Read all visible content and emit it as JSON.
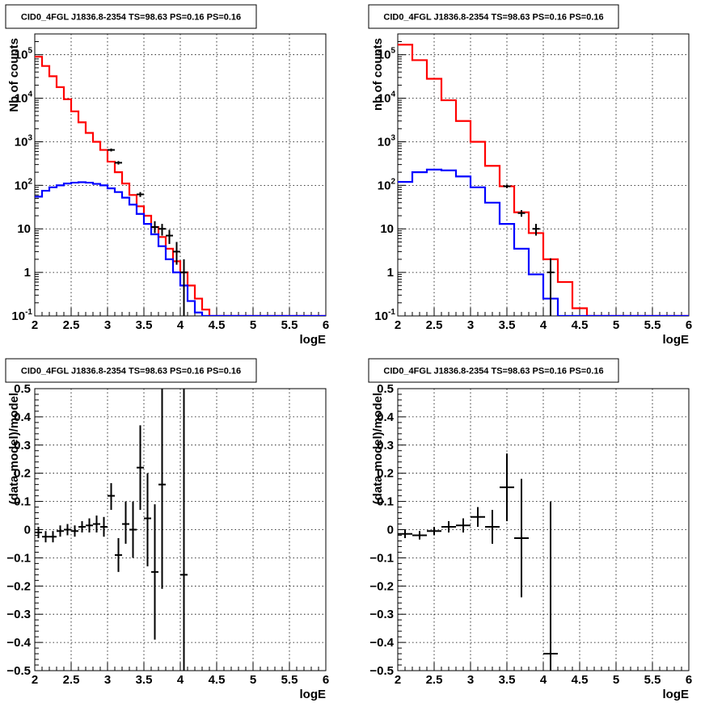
{
  "colors": {
    "total_model": "#ff0000",
    "source_model": "#0000ff",
    "data": "#000000"
  },
  "chart_data": [
    {
      "type": "line",
      "title": "CID0_4FGL J1836.8-2354 TS=98.63 PS=0.16 PS=0.16",
      "xlabel": "logE",
      "ylabel": "Nb of counts",
      "xlim": [
        2,
        6
      ],
      "ylim": [
        0.1,
        300000
      ],
      "yscale": "log",
      "grid": true,
      "xticks": [
        "2",
        "2.5",
        "3",
        "3.5",
        "4",
        "4.5",
        "5",
        "5.5",
        "6"
      ],
      "yticks": [
        {
          "value": 0.1,
          "label": "10",
          "exp": "-1"
        },
        {
          "value": 1,
          "label": "1",
          "exp": ""
        },
        {
          "value": 10,
          "label": "10",
          "exp": ""
        },
        {
          "value": 100,
          "label": "10",
          "exp": "2"
        },
        {
          "value": 1000,
          "label": "10",
          "exp": "3"
        },
        {
          "value": 10000,
          "label": "10",
          "exp": "4"
        },
        {
          "value": 100000,
          "label": "10",
          "exp": "5"
        }
      ],
      "bin_edges": [
        2.0,
        2.1,
        2.2,
        2.3,
        2.4,
        2.5,
        2.6,
        2.7,
        2.8,
        2.9,
        3.0,
        3.1,
        3.2,
        3.3,
        3.4,
        3.5,
        3.6,
        3.7,
        3.8,
        3.9,
        4.0,
        4.1,
        4.2,
        4.3,
        4.4,
        4.5,
        4.6,
        4.7,
        4.8,
        4.9,
        5.0,
        5.1,
        5.2,
        5.3,
        5.4,
        5.5,
        5.6,
        5.7,
        5.8,
        5.9,
        6.0
      ],
      "series": [
        {
          "style": "hist",
          "color": "#ff0000",
          "values": [
            90000,
            55000,
            32000,
            18000,
            9500,
            5000,
            2800,
            1600,
            1000,
            650,
            350,
            200,
            110,
            60,
            33,
            20,
            11,
            6.5,
            3.5,
            1.8,
            1.0,
            0.5,
            0.25,
            0.14,
            0.1,
            0.1,
            0.1,
            0.1,
            0.1,
            0.1,
            0.1,
            0.1,
            0.1,
            0.1,
            0.1,
            0.1,
            0.1,
            0.1,
            0.1,
            0.1
          ]
        },
        {
          "style": "hist",
          "color": "#0000ff",
          "values": [
            55,
            75,
            90,
            100,
            110,
            115,
            118,
            115,
            108,
            100,
            85,
            70,
            52,
            36,
            22,
            13,
            7.5,
            4.0,
            2.0,
            1.0,
            0.5,
            0.22,
            0.12,
            0.1,
            0.1,
            0.1,
            0.1,
            0.1,
            0.1,
            0.1,
            0.1,
            0.1,
            0.1,
            0.1,
            0.1,
            0.1,
            0.1,
            0.1,
            0.1,
            0.1
          ]
        },
        {
          "style": "points",
          "color": "#000000",
          "points": [
            {
              "x": 3.05,
              "y": 650,
              "lo": 600,
              "hi": 700
            },
            {
              "x": 3.15,
              "y": 330,
              "lo": 300,
              "hi": 360
            },
            {
              "x": 3.45,
              "y": 62,
              "lo": 54,
              "hi": 70
            },
            {
              "x": 3.65,
              "y": 11,
              "lo": 8,
              "hi": 15
            },
            {
              "x": 3.75,
              "y": 10,
              "lo": 7,
              "hi": 13
            },
            {
              "x": 3.85,
              "y": 7,
              "lo": 4.5,
              "hi": 9.5
            },
            {
              "x": 3.95,
              "y": 3.0,
              "lo": 1.5,
              "hi": 5.0
            },
            {
              "x": 4.05,
              "y": 1.0,
              "lo": 0.1,
              "hi": 2.0
            }
          ]
        }
      ]
    },
    {
      "type": "line",
      "title": "CID0_4FGL J1836.8-2354 TS=98.63 PS=0.16 PS=0.16",
      "xlabel": "logE",
      "ylabel": "nb of counts",
      "xlim": [
        2,
        6
      ],
      "ylim": [
        0.1,
        300000
      ],
      "yscale": "log",
      "grid": true,
      "xticks": [
        "2",
        "2.5",
        "3",
        "3.5",
        "4",
        "4.5",
        "5",
        "5.5",
        "6"
      ],
      "yticks": [
        {
          "value": 0.1,
          "label": "10",
          "exp": "-1"
        },
        {
          "value": 1,
          "label": "1",
          "exp": ""
        },
        {
          "value": 10,
          "label": "10",
          "exp": ""
        },
        {
          "value": 100,
          "label": "10",
          "exp": "2"
        },
        {
          "value": 1000,
          "label": "10",
          "exp": "3"
        },
        {
          "value": 10000,
          "label": "10",
          "exp": "4"
        },
        {
          "value": 100000,
          "label": "10",
          "exp": "5"
        }
      ],
      "bin_edges": [
        2.0,
        2.2,
        2.4,
        2.6,
        2.8,
        3.0,
        3.2,
        3.4,
        3.6,
        3.8,
        4.0,
        4.2,
        4.4,
        4.6,
        4.8,
        5.0,
        5.2,
        5.4,
        5.6,
        5.8,
        6.0
      ],
      "series": [
        {
          "style": "hist",
          "color": "#ff0000",
          "values": [
            170000,
            75000,
            28000,
            9000,
            3000,
            1000,
            280,
            95,
            24,
            8,
            2,
            0.6,
            0.15,
            0.1,
            0.1,
            0.1,
            0.1,
            0.1,
            0.1,
            0.1
          ]
        },
        {
          "style": "hist",
          "color": "#0000ff",
          "values": [
            120,
            200,
            230,
            220,
            160,
            90,
            40,
            13,
            3.5,
            0.9,
            0.25,
            0.1,
            0.1,
            0.1,
            0.1,
            0.1,
            0.1,
            0.1,
            0.1,
            0.1
          ]
        },
        {
          "style": "points",
          "color": "#000000",
          "points": [
            {
              "x": 3.5,
              "y": 95,
              "lo": 86,
              "hi": 104
            },
            {
              "x": 3.7,
              "y": 23,
              "lo": 19,
              "hi": 27
            },
            {
              "x": 3.9,
              "y": 10,
              "lo": 7,
              "hi": 13
            },
            {
              "x": 4.1,
              "y": 1.0,
              "lo": 0.1,
              "hi": 2.1
            }
          ]
        }
      ]
    },
    {
      "type": "scatter",
      "title": "CID0_4FGL J1836.8-2354 TS=98.63 PS=0.16 PS=0.16",
      "xlabel": "logE",
      "ylabel": "(data-model)/model",
      "xlim": [
        2,
        6
      ],
      "ylim": [
        -0.5,
        0.5
      ],
      "yscale": "linear",
      "grid": true,
      "xticks": [
        "2",
        "2.5",
        "3",
        "3.5",
        "4",
        "4.5",
        "5",
        "5.5",
        "6"
      ],
      "yticks": [
        {
          "value": -0.5,
          "label": "−0.5",
          "exp": ""
        },
        {
          "value": -0.4,
          "label": "−0.4",
          "exp": ""
        },
        {
          "value": -0.3,
          "label": "−0.3",
          "exp": ""
        },
        {
          "value": -0.2,
          "label": "−0.2",
          "exp": ""
        },
        {
          "value": -0.1,
          "label": "−0.1",
          "exp": ""
        },
        {
          "value": 0,
          "label": "0",
          "exp": ""
        },
        {
          "value": 0.1,
          "label": "0.1",
          "exp": ""
        },
        {
          "value": 0.2,
          "label": "0.2",
          "exp": ""
        },
        {
          "value": 0.3,
          "label": "0.3",
          "exp": ""
        },
        {
          "value": 0.4,
          "label": "0.4",
          "exp": ""
        },
        {
          "value": 0.5,
          "label": "0.5",
          "exp": ""
        }
      ],
      "series": [
        {
          "style": "points",
          "color": "#000000",
          "xerr": 0.05,
          "points": [
            {
              "x": 2.05,
              "y": -0.01,
              "lo": -0.03,
              "hi": 0.01
            },
            {
              "x": 2.15,
              "y": -0.025,
              "lo": -0.045,
              "hi": -0.005
            },
            {
              "x": 2.25,
              "y": -0.025,
              "lo": -0.045,
              "hi": -0.005
            },
            {
              "x": 2.35,
              "y": -0.005,
              "lo": -0.025,
              "hi": 0.015
            },
            {
              "x": 2.45,
              "y": 0.0,
              "lo": -0.02,
              "hi": 0.02
            },
            {
              "x": 2.55,
              "y": -0.005,
              "lo": -0.025,
              "hi": 0.015
            },
            {
              "x": 2.65,
              "y": 0.01,
              "lo": -0.01,
              "hi": 0.03
            },
            {
              "x": 2.75,
              "y": 0.015,
              "lo": -0.01,
              "hi": 0.04
            },
            {
              "x": 2.85,
              "y": 0.02,
              "lo": -0.01,
              "hi": 0.05
            },
            {
              "x": 2.95,
              "y": 0.01,
              "lo": -0.025,
              "hi": 0.045
            },
            {
              "x": 3.05,
              "y": 0.12,
              "lo": 0.07,
              "hi": 0.165
            },
            {
              "x": 3.15,
              "y": -0.09,
              "lo": -0.15,
              "hi": -0.03
            },
            {
              "x": 3.25,
              "y": 0.02,
              "lo": -0.05,
              "hi": 0.1
            },
            {
              "x": 3.35,
              "y": 0.0,
              "lo": -0.1,
              "hi": 0.1
            },
            {
              "x": 3.45,
              "y": 0.22,
              "lo": 0.07,
              "hi": 0.37
            },
            {
              "x": 3.55,
              "y": 0.04,
              "lo": -0.13,
              "hi": 0.2
            },
            {
              "x": 3.65,
              "y": -0.15,
              "lo": -0.39,
              "hi": 0.09
            },
            {
              "x": 3.75,
              "y": 0.16,
              "lo": -0.21,
              "hi": 0.5
            },
            {
              "x": 4.05,
              "y": -0.16,
              "lo": -0.5,
              "hi": 0.5
            }
          ]
        }
      ]
    },
    {
      "type": "scatter",
      "title": "CID0_4FGL J1836.8-2354 TS=98.63 PS=0.16 PS=0.16",
      "xlabel": "logE",
      "ylabel": "(data-model)/model",
      "xlim": [
        2,
        6
      ],
      "ylim": [
        -0.5,
        0.5
      ],
      "yscale": "linear",
      "grid": true,
      "xticks": [
        "2",
        "2.5",
        "3",
        "3.5",
        "4",
        "4.5",
        "5",
        "5.5",
        "6"
      ],
      "yticks": [
        {
          "value": -0.5,
          "label": "−0.5",
          "exp": ""
        },
        {
          "value": -0.4,
          "label": "−0.4",
          "exp": ""
        },
        {
          "value": -0.3,
          "label": "−0.3",
          "exp": ""
        },
        {
          "value": -0.2,
          "label": "−0.2",
          "exp": ""
        },
        {
          "value": -0.1,
          "label": "−0.1",
          "exp": ""
        },
        {
          "value": 0,
          "label": "0",
          "exp": ""
        },
        {
          "value": 0.1,
          "label": "0.1",
          "exp": ""
        },
        {
          "value": 0.2,
          "label": "0.2",
          "exp": ""
        },
        {
          "value": 0.3,
          "label": "0.3",
          "exp": ""
        },
        {
          "value": 0.4,
          "label": "0.4",
          "exp": ""
        },
        {
          "value": 0.5,
          "label": "0.5",
          "exp": ""
        }
      ],
      "series": [
        {
          "style": "points",
          "color": "#000000",
          "xerr": 0.1,
          "points": [
            {
              "x": 2.1,
              "y": -0.015,
              "lo": -0.03,
              "hi": 0.0
            },
            {
              "x": 2.3,
              "y": -0.02,
              "lo": -0.035,
              "hi": -0.005
            },
            {
              "x": 2.5,
              "y": -0.005,
              "lo": -0.02,
              "hi": 0.01
            },
            {
              "x": 2.7,
              "y": 0.01,
              "lo": -0.01,
              "hi": 0.03
            },
            {
              "x": 2.9,
              "y": 0.015,
              "lo": -0.01,
              "hi": 0.04
            },
            {
              "x": 3.1,
              "y": 0.045,
              "lo": 0.01,
              "hi": 0.08
            },
            {
              "x": 3.3,
              "y": 0.01,
              "lo": -0.05,
              "hi": 0.07
            },
            {
              "x": 3.5,
              "y": 0.15,
              "lo": 0.03,
              "hi": 0.27
            },
            {
              "x": 3.7,
              "y": -0.03,
              "lo": -0.24,
              "hi": 0.18
            },
            {
              "x": 4.1,
              "y": -0.44,
              "lo": -0.5,
              "hi": 0.1
            }
          ]
        }
      ]
    }
  ]
}
